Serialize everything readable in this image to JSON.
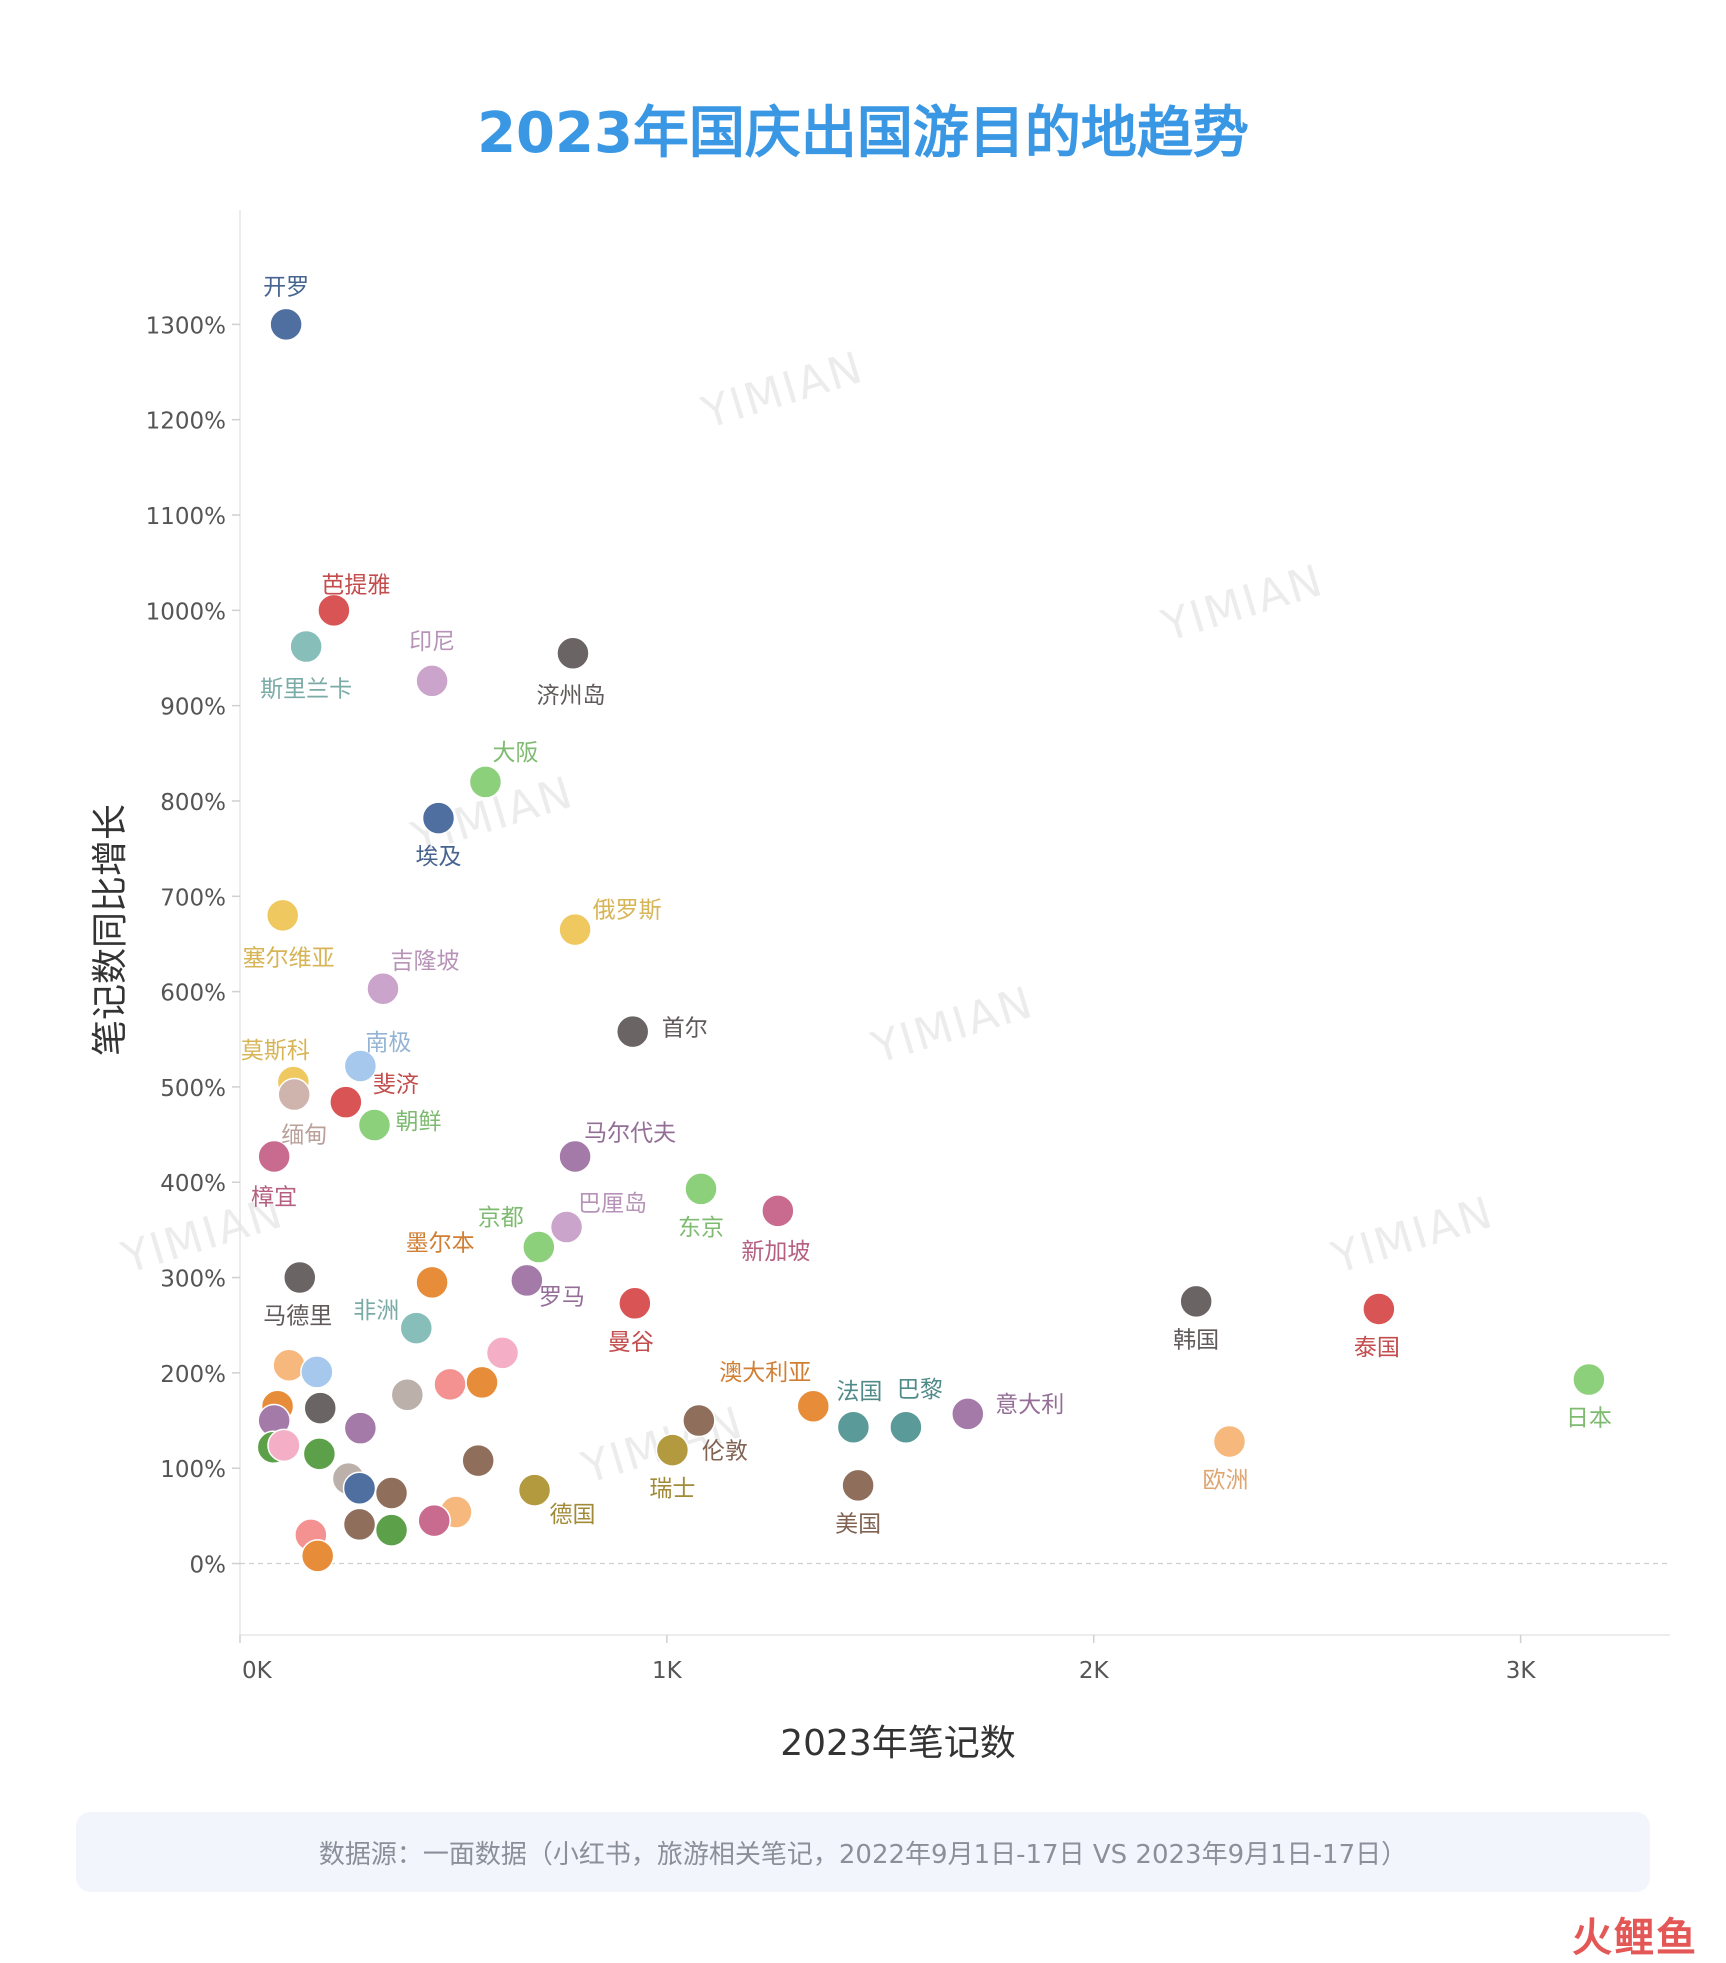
{
  "header": {
    "title": "2023年国庆出国游目的地趋势"
  },
  "footer": {
    "source": "数据源：一面数据（小红书，旅游相关笔记，2022年9月1日-17日 VS 2023年9月1日-17日）",
    "brand": "火鲤鱼"
  },
  "watermark": {
    "text": "YIMIAN"
  },
  "chart_data": {
    "type": "scatter",
    "title": "2023年国庆出国游目的地趋势",
    "xlabel": "2023年笔记数",
    "ylabel": "笔记数同比增长",
    "xlim": [
      0,
      3350
    ],
    "ylim": [
      -75,
      1420
    ],
    "x_ticks": [
      0,
      1000,
      2000,
      3000
    ],
    "x_tick_labels": [
      "0K",
      "1K",
      "2K",
      "3K"
    ],
    "y_ticks": [
      0,
      100,
      200,
      300,
      400,
      500,
      600,
      700,
      800,
      900,
      1000,
      1100,
      1200,
      1300
    ],
    "y_tick_labels": [
      "0%",
      "100%",
      "200%",
      "300%",
      "400%",
      "500%",
      "600%",
      "700%",
      "800%",
      "900%",
      "1000%",
      "1100%",
      "1200%",
      "1300%"
    ],
    "grid": false,
    "points": [
      {
        "label": "开罗",
        "x": 108,
        "y": 1300,
        "color": "#4e6f9f"
      },
      {
        "label": "芭提雅",
        "x": 220,
        "y": 1000,
        "color": "#d95454"
      },
      {
        "label": "斯里兰卡",
        "x": 155,
        "y": 962,
        "color": "#87beb9"
      },
      {
        "label": "印尼",
        "x": 450,
        "y": 926,
        "color": "#cba4cb"
      },
      {
        "label": "济州岛",
        "x": 780,
        "y": 955,
        "color": "#6b6464"
      },
      {
        "label": "大阪",
        "x": 575,
        "y": 820,
        "color": "#8cd07c"
      },
      {
        "label": "埃及",
        "x": 465,
        "y": 782,
        "color": "#4e6f9f"
      },
      {
        "label": "塞尔维亚",
        "x": 100,
        "y": 680,
        "color": "#efc860"
      },
      {
        "label": "俄罗斯",
        "x": 785,
        "y": 665,
        "color": "#efc860"
      },
      {
        "label": "吉隆坡",
        "x": 335,
        "y": 603,
        "color": "#cba4cb"
      },
      {
        "label": "首尔",
        "x": 920,
        "y": 558,
        "color": "#6b6464"
      },
      {
        "label": "莫斯科",
        "x": 125,
        "y": 505,
        "color": "#efc860"
      },
      {
        "label": "南极",
        "x": 282,
        "y": 522,
        "color": "#a5c8ec"
      },
      {
        "label": "斐济",
        "x": 248,
        "y": 484,
        "color": "#d95454"
      },
      {
        "label": "缅甸",
        "x": 127,
        "y": 492,
        "color": "#cfb3ad"
      },
      {
        "label": "朝鲜",
        "x": 315,
        "y": 460,
        "color": "#8cd07c"
      },
      {
        "label": "马尔代夫",
        "x": 785,
        "y": 427,
        "color": "#a47aa8"
      },
      {
        "label": "樟宜",
        "x": 80,
        "y": 427,
        "color": "#c96b8e"
      },
      {
        "label": "东京",
        "x": 1080,
        "y": 393,
        "color": "#8cd07c"
      },
      {
        "label": "新加坡",
        "x": 1260,
        "y": 370,
        "color": "#c96b8e"
      },
      {
        "label": "巴厘岛",
        "x": 765,
        "y": 353,
        "color": "#cba4cb"
      },
      {
        "label": "京都",
        "x": 700,
        "y": 332,
        "color": "#8cd07c"
      },
      {
        "label": "墨尔本",
        "x": 450,
        "y": 295,
        "color": "#e78d3a"
      },
      {
        "label": "罗马",
        "x": 672,
        "y": 297,
        "color": "#a47aa8"
      },
      {
        "label": "马德里",
        "x": 140,
        "y": 300,
        "color": "#6b6464"
      },
      {
        "label": "曼谷",
        "x": 925,
        "y": 273,
        "color": "#d95454"
      },
      {
        "label": "非洲",
        "x": 413,
        "y": 247,
        "color": "#87beb9"
      },
      {
        "label": "韩国",
        "x": 2240,
        "y": 275,
        "color": "#6b6464"
      },
      {
        "label": "泰国",
        "x": 2668,
        "y": 267,
        "color": "#d95454"
      },
      {
        "label": "日本",
        "x": 3160,
        "y": 193,
        "color": "#8cd07c"
      },
      {
        "label": "澳大利亚",
        "x": 1343,
        "y": 165,
        "color": "#e78d3a"
      },
      {
        "label": "法国",
        "x": 1437,
        "y": 143,
        "color": "#5a9a98"
      },
      {
        "label": "巴黎",
        "x": 1560,
        "y": 143,
        "color": "#5a9a98"
      },
      {
        "label": "意大利",
        "x": 1705,
        "y": 157,
        "color": "#a47aa8"
      },
      {
        "label": "欧洲",
        "x": 2318,
        "y": 128,
        "color": "#f7b87d"
      },
      {
        "label": "伦敦",
        "x": 1075,
        "y": 150,
        "color": "#8f6e5c"
      },
      {
        "label": "瑞士",
        "x": 1013,
        "y": 119,
        "color": "#b39a3f"
      },
      {
        "label": "美国",
        "x": 1448,
        "y": 82,
        "color": "#8f6e5c"
      },
      {
        "label": "德国",
        "x": 690,
        "y": 77,
        "color": "#b39a3f"
      },
      {
        "label": "",
        "x": 115,
        "y": 208,
        "color": "#f7b87d"
      },
      {
        "label": "",
        "x": 180,
        "y": 201,
        "color": "#a5c8ec"
      },
      {
        "label": "",
        "x": 88,
        "y": 165,
        "color": "#e78d3a"
      },
      {
        "label": "",
        "x": 80,
        "y": 150,
        "color": "#a47aa8"
      },
      {
        "label": "",
        "x": 188,
        "y": 163,
        "color": "#6b6464"
      },
      {
        "label": "",
        "x": 282,
        "y": 142,
        "color": "#a47aa8"
      },
      {
        "label": "",
        "x": 78,
        "y": 122,
        "color": "#5da04a"
      },
      {
        "label": "",
        "x": 103,
        "y": 124,
        "color": "#f4afc6"
      },
      {
        "label": "",
        "x": 186,
        "y": 115,
        "color": "#5da04a"
      },
      {
        "label": "",
        "x": 392,
        "y": 177,
        "color": "#bcb0aa"
      },
      {
        "label": "",
        "x": 492,
        "y": 188,
        "color": "#f49191"
      },
      {
        "label": "",
        "x": 567,
        "y": 190,
        "color": "#e78d3a"
      },
      {
        "label": "",
        "x": 615,
        "y": 221,
        "color": "#f4afc6"
      },
      {
        "label": "",
        "x": 558,
        "y": 108,
        "color": "#8f6e5c"
      },
      {
        "label": "",
        "x": 254,
        "y": 89,
        "color": "#bcb0aa"
      },
      {
        "label": "",
        "x": 280,
        "y": 79,
        "color": "#4e6f9f"
      },
      {
        "label": "",
        "x": 355,
        "y": 74,
        "color": "#8f6e5c"
      },
      {
        "label": "",
        "x": 506,
        "y": 54,
        "color": "#f7b87d"
      },
      {
        "label": "",
        "x": 455,
        "y": 45,
        "color": "#c96b8e"
      },
      {
        "label": "",
        "x": 280,
        "y": 41,
        "color": "#8f6e5c"
      },
      {
        "label": "",
        "x": 355,
        "y": 35,
        "color": "#5da04a"
      },
      {
        "label": "",
        "x": 166,
        "y": 30,
        "color": "#f49191"
      },
      {
        "label": "",
        "x": 182,
        "y": 8,
        "color": "#e78d3a"
      }
    ]
  }
}
